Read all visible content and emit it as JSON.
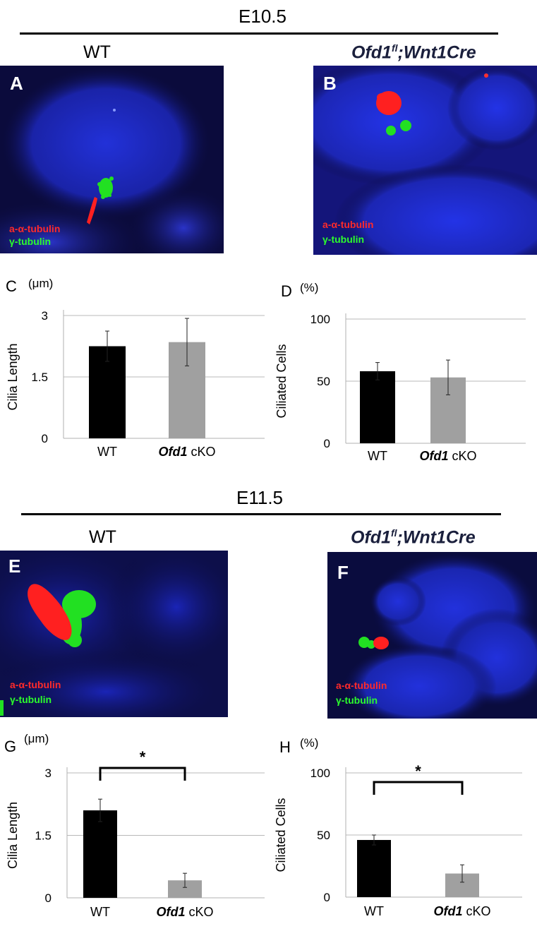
{
  "stages": [
    {
      "label": "E10.5"
    },
    {
      "label": "E11.5"
    }
  ],
  "genotypes": {
    "wt": "WT",
    "mut_prefix": "Ofd1",
    "mut_sup": "fl",
    "mut_suffix": ";Wnt1Cre"
  },
  "micrographs": [
    {
      "letter": "A",
      "red_label": "a-α-tubulin",
      "green_label": "γ-tubulin"
    },
    {
      "letter": "B",
      "red_label": "a-α-tubulin",
      "green_label": "γ-tubulin"
    },
    {
      "letter": "E",
      "red_label": "a-α-tubulin",
      "green_label": "γ-tubulin"
    },
    {
      "letter": "F",
      "red_label": "a-α-tubulin",
      "green_label": "γ-tubulin"
    }
  ],
  "colors": {
    "nucleus_blue": "#1f2bd0",
    "background_dark": "#0a0a3a",
    "cilia_red": "#ff2020",
    "centrosome_green": "#22e022",
    "bar_wt": "#000000",
    "bar_cko": "#a0a0a0"
  },
  "chart_data": [
    {
      "id": "C",
      "type": "bar",
      "unit": "(μm)",
      "ylabel": "Cilia Length",
      "categories": [
        {
          "name": "WT",
          "prefix": "",
          "suffix": ""
        },
        {
          "name": "Ofd1 cKO",
          "prefix": "Ofd1",
          "suffix": " cKO"
        }
      ],
      "values": [
        2.25,
        2.35
      ],
      "errors": [
        0.37,
        0.58
      ],
      "ylim": [
        0,
        3
      ],
      "ticks": [
        0,
        1.5,
        3
      ],
      "tick_labels": [
        "0",
        "1.5",
        "3"
      ],
      "grid": true,
      "significance": null
    },
    {
      "id": "D",
      "type": "bar",
      "unit": "(%)",
      "ylabel": "Ciliated Cells",
      "categories": [
        {
          "name": "WT",
          "prefix": "",
          "suffix": ""
        },
        {
          "name": "Ofd1 cKO",
          "prefix": "Ofd1",
          "suffix": " cKO"
        }
      ],
      "values": [
        58,
        53
      ],
      "errors": [
        7,
        14
      ],
      "ylim": [
        0,
        100
      ],
      "ticks": [
        0,
        50,
        100
      ],
      "tick_labels": [
        "0",
        "50",
        "100"
      ],
      "grid": true,
      "significance": null
    },
    {
      "id": "G",
      "type": "bar",
      "unit": "(μm)",
      "ylabel": "Cilia Length",
      "categories": [
        {
          "name": "WT",
          "prefix": "",
          "suffix": ""
        },
        {
          "name": "Ofd1 cKO",
          "prefix": "Ofd1",
          "suffix": " cKO"
        }
      ],
      "values": [
        2.1,
        0.42
      ],
      "errors": [
        0.27,
        0.17
      ],
      "ylim": [
        0,
        3
      ],
      "ticks": [
        0,
        1.5,
        3
      ],
      "tick_labels": [
        "0",
        "1.5",
        "3"
      ],
      "grid": true,
      "significance": "*"
    },
    {
      "id": "H",
      "type": "bar",
      "unit": "(%)",
      "ylabel": "Ciliated Cells",
      "categories": [
        {
          "name": "WT",
          "prefix": "",
          "suffix": ""
        },
        {
          "name": "Ofd1 cKO",
          "prefix": "Ofd1",
          "suffix": " cKO"
        }
      ],
      "values": [
        46,
        19
      ],
      "errors": [
        4,
        7
      ],
      "ylim": [
        0,
        100
      ],
      "ticks": [
        0,
        50,
        100
      ],
      "tick_labels": [
        "0",
        "50",
        "100"
      ],
      "grid": true,
      "significance": "*"
    }
  ]
}
